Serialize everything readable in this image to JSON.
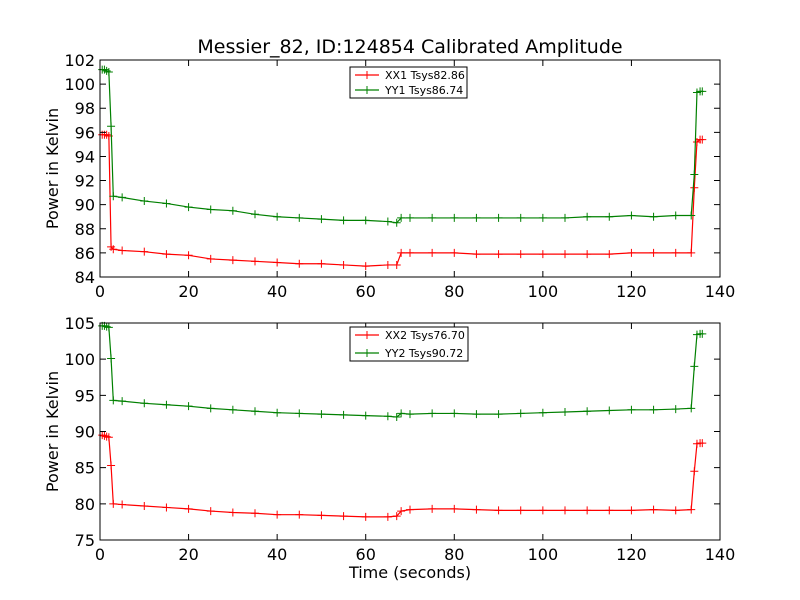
{
  "title": "Messier_82, ID:124854 Calibrated Amplitude",
  "chart_data": [
    {
      "type": "line",
      "title": "Messier_82, ID:124854 Calibrated Amplitude",
      "xlabel": "",
      "ylabel": "Power in Kelvin",
      "xlim": [
        0,
        140
      ],
      "ylim": [
        84,
        102
      ],
      "xticks": [
        0,
        20,
        40,
        60,
        80,
        100,
        120,
        140
      ],
      "yticks": [
        84,
        86,
        88,
        90,
        92,
        94,
        96,
        98,
        100,
        102
      ],
      "grid": false,
      "legend": "top-center",
      "marker": "+",
      "series": [
        {
          "name": "XX1 Tsys82.86",
          "color": "#ff0000",
          "x": [
            0.5,
            1.0,
            1.5,
            2.0,
            2.5,
            3,
            5,
            10,
            15,
            20,
            25,
            30,
            35,
            40,
            45,
            50,
            55,
            60,
            65,
            67,
            68,
            70,
            75,
            80,
            85,
            90,
            95,
            100,
            105,
            110,
            115,
            120,
            125,
            130,
            133.5,
            134.2,
            134.8,
            135.5,
            136
          ],
          "values": [
            95.8,
            95.8,
            95.8,
            95.7,
            86.5,
            86.3,
            86.2,
            86.1,
            85.9,
            85.8,
            85.5,
            85.4,
            85.3,
            85.2,
            85.1,
            85.1,
            85.0,
            84.9,
            85.0,
            85.0,
            86.0,
            86.0,
            86.0,
            86.0,
            85.9,
            85.9,
            85.9,
            85.9,
            85.9,
            85.9,
            85.9,
            86.0,
            86.0,
            86.0,
            86.0,
            91.4,
            95.2,
            95.4,
            95.4
          ]
        },
        {
          "name": "YY1 Tsys86.74",
          "color": "#008000",
          "x": [
            0.5,
            1.0,
            1.5,
            2.0,
            2.5,
            3,
            5,
            10,
            15,
            20,
            25,
            30,
            35,
            40,
            45,
            50,
            55,
            60,
            65,
            67,
            68,
            70,
            75,
            80,
            85,
            90,
            95,
            100,
            105,
            110,
            115,
            120,
            125,
            130,
            133.5,
            134.2,
            134.8,
            135.5,
            136
          ],
          "values": [
            101.2,
            101.2,
            101.1,
            101.0,
            96.5,
            90.7,
            90.6,
            90.3,
            90.1,
            89.8,
            89.6,
            89.5,
            89.2,
            89.0,
            88.9,
            88.8,
            88.7,
            88.7,
            88.6,
            88.5,
            88.9,
            88.9,
            88.9,
            88.9,
            88.9,
            88.9,
            88.9,
            88.9,
            88.9,
            89.0,
            89.0,
            89.1,
            89.0,
            89.1,
            89.1,
            92.5,
            99.3,
            99.4,
            99.4
          ]
        }
      ]
    },
    {
      "type": "line",
      "title": "",
      "xlabel": "Time (seconds)",
      "ylabel": "Power in Kelvin",
      "xlim": [
        0,
        140
      ],
      "ylim": [
        75,
        105
      ],
      "xticks": [
        0,
        20,
        40,
        60,
        80,
        100,
        120,
        140
      ],
      "yticks": [
        75,
        80,
        85,
        90,
        95,
        100,
        105
      ],
      "grid": false,
      "legend": "top-center",
      "marker": "+",
      "series": [
        {
          "name": "XX2 Tsys76.70",
          "color": "#ff0000",
          "x": [
            0.5,
            1.0,
            1.5,
            2.0,
            2.5,
            3,
            5,
            10,
            15,
            20,
            25,
            30,
            35,
            40,
            45,
            50,
            55,
            60,
            65,
            67,
            68,
            70,
            75,
            80,
            85,
            90,
            95,
            100,
            105,
            110,
            115,
            120,
            125,
            130,
            133.5,
            134.2,
            134.8,
            135.5,
            136
          ],
          "values": [
            89.5,
            89.4,
            89.3,
            89.2,
            85.3,
            80.0,
            79.9,
            79.7,
            79.5,
            79.3,
            79.0,
            78.8,
            78.7,
            78.5,
            78.5,
            78.4,
            78.3,
            78.2,
            78.2,
            78.3,
            79.0,
            79.2,
            79.3,
            79.3,
            79.2,
            79.1,
            79.1,
            79.1,
            79.1,
            79.1,
            79.1,
            79.1,
            79.2,
            79.1,
            79.2,
            84.5,
            88.3,
            88.4,
            88.4
          ]
        },
        {
          "name": "YY2 Tsys90.72",
          "color": "#008000",
          "x": [
            0.5,
            1.0,
            1.5,
            2.0,
            2.5,
            3,
            5,
            10,
            15,
            20,
            25,
            30,
            35,
            40,
            45,
            50,
            55,
            60,
            65,
            67,
            68,
            70,
            75,
            80,
            85,
            90,
            95,
            100,
            105,
            110,
            115,
            120,
            125,
            130,
            133.5,
            134.2,
            134.8,
            135.5,
            136
          ],
          "values": [
            104.6,
            104.6,
            104.5,
            104.4,
            100.1,
            94.3,
            94.2,
            93.9,
            93.7,
            93.5,
            93.2,
            93.0,
            92.8,
            92.6,
            92.5,
            92.4,
            92.3,
            92.2,
            92.1,
            92.0,
            92.5,
            92.4,
            92.5,
            92.5,
            92.4,
            92.4,
            92.5,
            92.6,
            92.7,
            92.8,
            92.9,
            93.0,
            93.0,
            93.1,
            93.2,
            99.0,
            103.4,
            103.5,
            103.5
          ]
        }
      ]
    }
  ]
}
